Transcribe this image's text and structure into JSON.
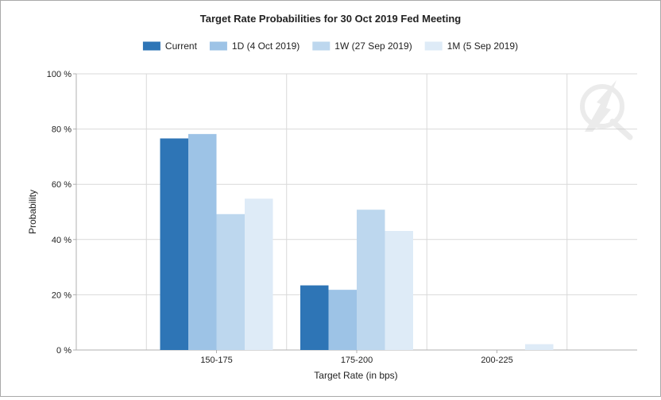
{
  "colors": {
    "grid": "#d9d9d9",
    "axis": "#b0b0b0",
    "series": [
      "#2e75b6",
      "#9dc3e6",
      "#bdd7ee",
      "#deebf7"
    ]
  },
  "chart_data": {
    "type": "bar",
    "title": "Target Rate Probabilities for 30 Oct 2019 Fed Meeting",
    "xlabel": "Target Rate (in bps)",
    "ylabel": "Probability",
    "categories": [
      "150-175",
      "175-200",
      "200-225"
    ],
    "y_ticks": [
      "0 %",
      "20 %",
      "40 %",
      "60 %",
      "80 %",
      "100 %"
    ],
    "ylim": [
      0,
      100
    ],
    "grid": true,
    "legend_position": "top",
    "series": [
      {
        "name": "Current",
        "values": [
          76.6,
          23.4,
          0
        ]
      },
      {
        "name": "1D (4 Oct 2019)",
        "values": [
          78.2,
          21.8,
          0
        ]
      },
      {
        "name": "1W (27 Sep 2019)",
        "values": [
          49.2,
          50.8,
          0
        ]
      },
      {
        "name": "1M (5 Sep 2019)",
        "values": [
          54.8,
          43.1,
          2.1
        ]
      }
    ]
  }
}
